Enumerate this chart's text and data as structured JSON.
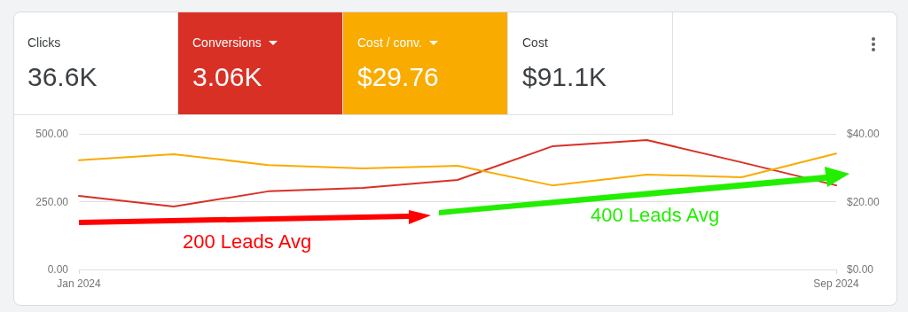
{
  "chart_data": {
    "type": "line",
    "categories": [
      "Jan 2024",
      null,
      null,
      null,
      null,
      null,
      null,
      null,
      "Sep 2024"
    ],
    "series": [
      {
        "color": "#d93025",
        "values": [
          271,
          232,
          288,
          301,
          330,
          454,
          477,
          395,
          310
        ]
      },
      {
        "color": "#f9ab00",
        "axis": "y2",
        "values": [
          32.2,
          34.0,
          30.8,
          29.8,
          30.6,
          24.8,
          28.0,
          27.2,
          34.2
        ]
      }
    ],
    "ylim": [
      0,
      500
    ],
    "yticks": [
      {
        "value": 0,
        "label": "0.00"
      },
      {
        "value": 250,
        "label": "250.00"
      },
      {
        "value": 500,
        "label": "500.00"
      }
    ],
    "y2lim": [
      0,
      40
    ],
    "y2ticks": [
      {
        "value": 0,
        "label": "$0.00"
      },
      {
        "value": 20,
        "label": "$20.00"
      },
      {
        "value": 40,
        "label": "$40.00"
      }
    ],
    "grid": "y",
    "marker": "none",
    "line_style": "solid",
    "annotations": [
      "Clicks",
      "36.6K",
      "Conversions",
      "3.06K",
      "Cost / conv.",
      "$29.76",
      "Cost",
      "$91.1K",
      "200 Leads Avg",
      "400 Leads Avg"
    ]
  }
}
